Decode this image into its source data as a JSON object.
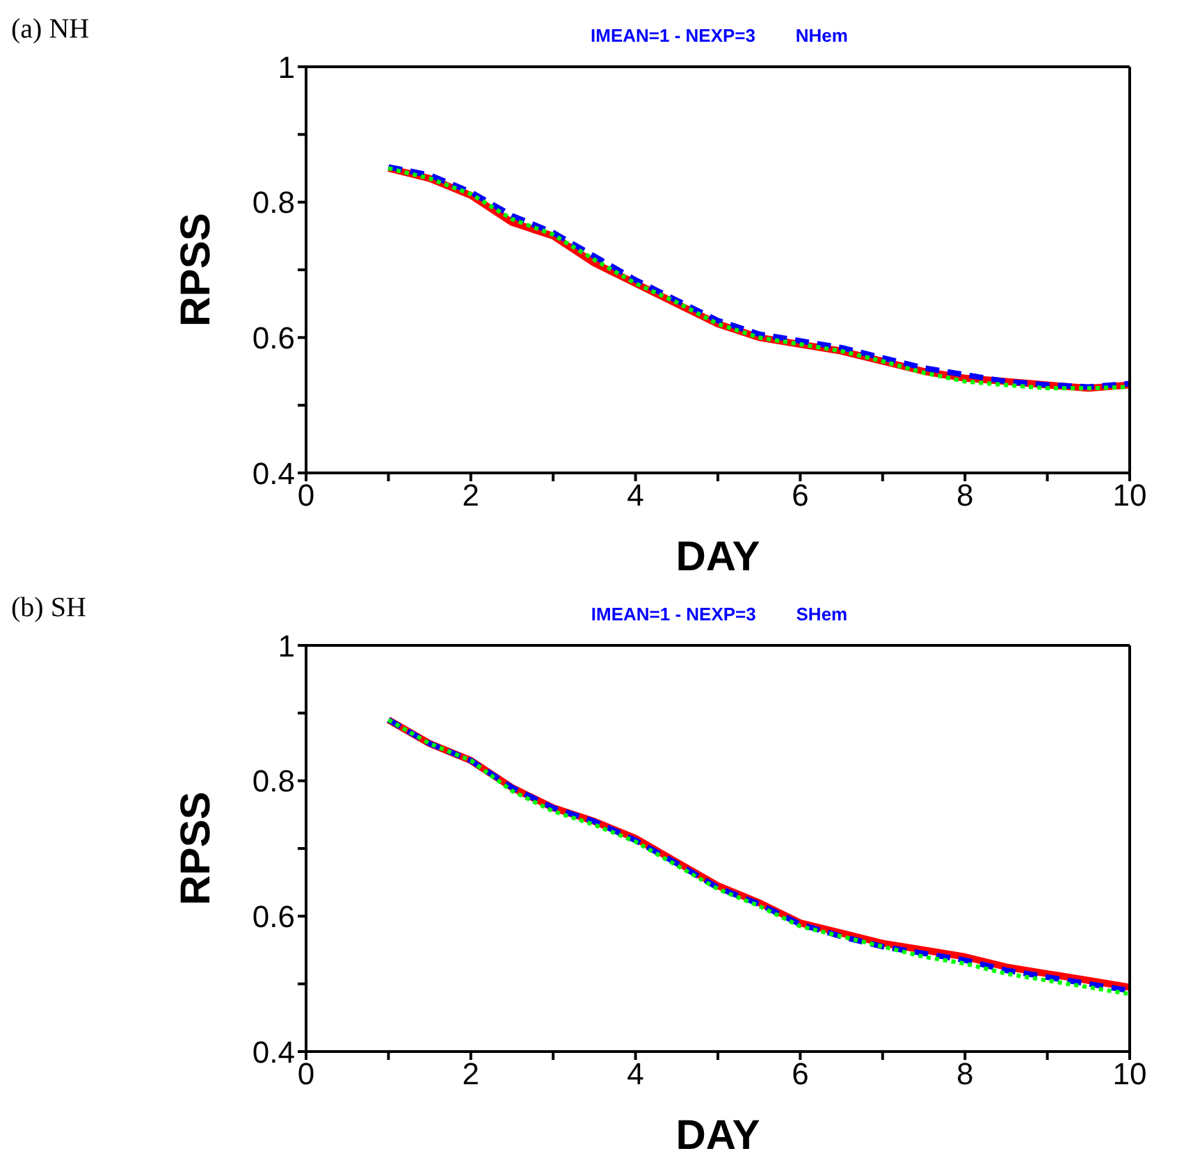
{
  "chart_data": [
    {
      "type": "line",
      "title": "IMEAN=1 - NEXP=3        NHem",
      "annotations": [
        "(a) NH"
      ],
      "xlabel": "DAY",
      "ylabel": "RPSS",
      "x": [
        1,
        1.5,
        2,
        2.5,
        3,
        3.5,
        4,
        4.5,
        5,
        5.5,
        6,
        6.5,
        7,
        7.5,
        8,
        8.5,
        9,
        9.5,
        10
      ],
      "series": [
        {
          "color": "#ff0000",
          "line_style": "solid",
          "values": [
            0.85,
            0.835,
            0.81,
            0.77,
            0.75,
            0.71,
            0.68,
            0.65,
            0.62,
            0.6,
            0.59,
            0.58,
            0.565,
            0.55,
            0.54,
            0.535,
            0.53,
            0.525,
            0.53
          ]
        },
        {
          "color": "#0000ff",
          "line_style": "dashed",
          "values": [
            0.852,
            0.84,
            0.815,
            0.78,
            0.755,
            0.72,
            0.685,
            0.655,
            0.625,
            0.605,
            0.595,
            0.585,
            0.57,
            0.555,
            0.545,
            0.535,
            0.53,
            0.527,
            0.532
          ]
        },
        {
          "color": "#00ff00",
          "line_style": "dotted",
          "values": [
            0.85,
            0.835,
            0.812,
            0.775,
            0.752,
            0.715,
            0.68,
            0.652,
            0.62,
            0.6,
            0.59,
            0.58,
            0.565,
            0.548,
            0.535,
            0.53,
            0.525,
            0.525,
            0.527
          ]
        }
      ],
      "xlim": [
        0,
        10
      ],
      "xticks": [
        0,
        {
          "value": 1,
          "label": null
        },
        2,
        {
          "value": 3,
          "label": null
        },
        4,
        {
          "value": 5,
          "label": null
        },
        6,
        {
          "value": 7,
          "label": null
        },
        8,
        {
          "value": 9,
          "label": null
        },
        10
      ],
      "ylim": [
        0.4,
        1
      ],
      "yticks": [
        0.4,
        {
          "value": 0.5,
          "label": null
        },
        0.6,
        {
          "value": 0.7,
          "label": null
        },
        0.8,
        {
          "value": 0.9,
          "label": null
        },
        1
      ],
      "grid": false,
      "legend": false
    },
    {
      "type": "line",
      "title": "IMEAN=1 - NEXP=3        SHem",
      "annotations": [
        "(b) SH"
      ],
      "xlabel": "DAY",
      "ylabel": "RPSS",
      "x": [
        1,
        1.5,
        2,
        2.5,
        3,
        3.5,
        4,
        4.5,
        5,
        5.5,
        6,
        6.5,
        7,
        7.5,
        8,
        8.5,
        9,
        9.5,
        10
      ],
      "series": [
        {
          "color": "#ff0000",
          "line_style": "solid",
          "values": [
            0.89,
            0.855,
            0.83,
            0.79,
            0.76,
            0.74,
            0.715,
            0.68,
            0.645,
            0.62,
            0.59,
            0.575,
            0.56,
            0.55,
            0.54,
            0.525,
            0.515,
            0.505,
            0.495
          ]
        },
        {
          "color": "#0000ff",
          "line_style": "dashed",
          "values": [
            0.89,
            0.855,
            0.83,
            0.79,
            0.76,
            0.74,
            0.712,
            0.678,
            0.642,
            0.618,
            0.588,
            0.57,
            0.555,
            0.545,
            0.535,
            0.52,
            0.51,
            0.5,
            0.49
          ]
        },
        {
          "color": "#00ff00",
          "line_style": "dotted",
          "values": [
            0.89,
            0.855,
            0.83,
            0.785,
            0.755,
            0.735,
            0.71,
            0.675,
            0.64,
            0.615,
            0.585,
            0.57,
            0.555,
            0.54,
            0.53,
            0.515,
            0.505,
            0.495,
            0.485
          ]
        }
      ],
      "xlim": [
        0,
        10
      ],
      "xticks": [
        0,
        {
          "value": 1,
          "label": null
        },
        2,
        {
          "value": 3,
          "label": null
        },
        4,
        {
          "value": 5,
          "label": null
        },
        6,
        {
          "value": 7,
          "label": null
        },
        8,
        {
          "value": 9,
          "label": null
        },
        10
      ],
      "ylim": [
        0.4,
        1
      ],
      "yticks": [
        0.4,
        {
          "value": 0.5,
          "label": null
        },
        0.6,
        {
          "value": 0.7,
          "label": null
        },
        0.8,
        {
          "value": 0.9,
          "label": null
        },
        1
      ],
      "grid": false,
      "legend": false
    }
  ]
}
